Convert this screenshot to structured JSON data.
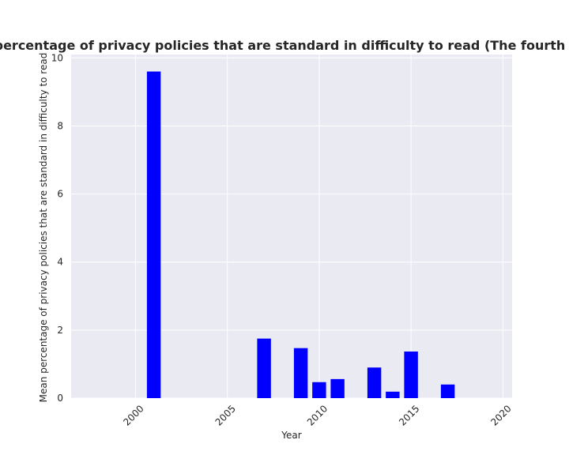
{
  "chart_data": {
    "type": "bar",
    "title": "t Mean percentage of privacy policies that are standard in difficulty to read (The fourth most dif",
    "xlabel": "Year",
    "ylabel": "Mean percentage of privacy policies that are standard in difficulty to read",
    "x": [
      2001,
      2007,
      2009,
      2010,
      2011,
      2013,
      2014,
      2015,
      2017
    ],
    "values": [
      9.6,
      1.75,
      1.47,
      0.47,
      0.56,
      0.9,
      0.19,
      1.37,
      0.4
    ],
    "xlim": [
      1996.5,
      2020.5
    ],
    "ylim": [
      0,
      10.1
    ],
    "xticks": [
      2000,
      2005,
      2010,
      2015,
      2020
    ],
    "xtick_labels": [
      "2000",
      "2005",
      "2010",
      "2015",
      "2020"
    ],
    "yticks": [
      0,
      2,
      4,
      6,
      8,
      10
    ],
    "ytick_labels": [
      "0",
      "2",
      "4",
      "6",
      "8",
      "10"
    ],
    "grid": true,
    "bar_color": "#0000ff",
    "plot_background": "#eaeaf2",
    "grid_color": "#ffffff"
  }
}
